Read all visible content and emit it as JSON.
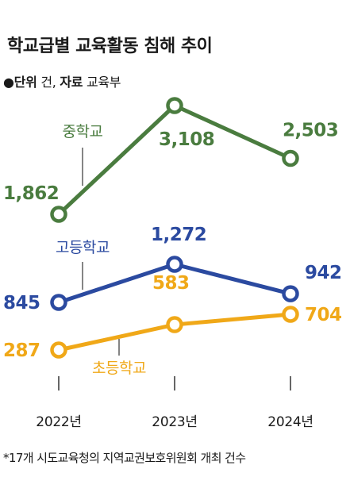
{
  "header": {
    "title": "학교급별 교육활동 침해 추이",
    "unit_label": "단위",
    "unit_value": "건,",
    "source_label": "자료",
    "source_value": "교육부"
  },
  "footnote": "*17개 시도교육청의 지역교권보호위원회 개최 건수",
  "chart_data": {
    "type": "line",
    "title": "학교급별 교육활동 침해 추이",
    "x": [
      "2022년",
      "2023년",
      "2024년"
    ],
    "series": [
      {
        "name": "중학교",
        "color": "#4a7c3f",
        "values": [
          1862,
          3108,
          2503
        ],
        "labels": [
          "1,862",
          "3,108",
          "2,503"
        ]
      },
      {
        "name": "고등학교",
        "color": "#2b4aa0",
        "values": [
          845,
          1272,
          942
        ],
        "labels": [
          "845",
          "1,272",
          "942"
        ]
      },
      {
        "name": "초등학교",
        "color": "#f0a818",
        "values": [
          287,
          583,
          704
        ],
        "labels": [
          "287",
          "583",
          "704"
        ]
      }
    ],
    "legend": "inline labels",
    "grid": false
  }
}
